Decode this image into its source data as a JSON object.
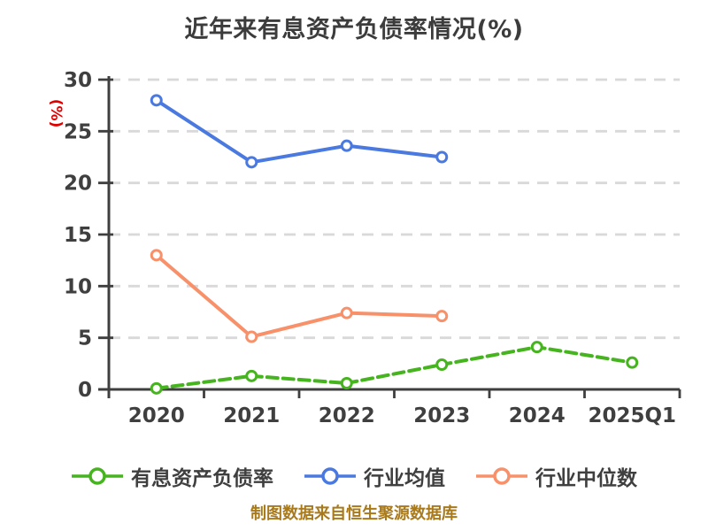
{
  "header": {
    "title": "近年来有息资产负债率情况(%)"
  },
  "footer": {
    "text": "制图数据来自恒生聚源数据库"
  },
  "chart_data": {
    "type": "line",
    "title": "近年来有息资产负债率情况(%)",
    "categories": [
      "2020",
      "2021",
      "2022",
      "2023",
      "2024",
      "2025Q1"
    ],
    "series": [
      {
        "name": "有息资产负债率",
        "color": "#46b41e",
        "line_style": "dashed",
        "marker": "circle-white-fill",
        "values": [
          0.1,
          1.3,
          0.6,
          2.4,
          4.1,
          2.6
        ]
      },
      {
        "name": "行业均值",
        "color": "#4a79e0",
        "line_style": "solid",
        "marker": "circle-white-fill",
        "values": [
          28.0,
          22.0,
          23.6,
          22.5,
          null,
          null
        ]
      },
      {
        "name": "行业中位数",
        "color": "#f8906a",
        "line_style": "solid",
        "marker": "circle-white-fill",
        "values": [
          13.0,
          5.1,
          7.4,
          7.1,
          null,
          null
        ]
      }
    ],
    "xlabel": "",
    "ylabel": "(%)",
    "ylim": [
      0,
      30
    ],
    "yticks": [
      0,
      5,
      10,
      15,
      20,
      25,
      30
    ],
    "grid": "horizontal-dashed",
    "legend_position": "bottom",
    "colors": {
      "title": "#3c3c3c",
      "axis": "#3f3f3f",
      "grid": "#d9d9d9",
      "ylabel": "#e00000",
      "footer": "#a87a1b"
    }
  }
}
